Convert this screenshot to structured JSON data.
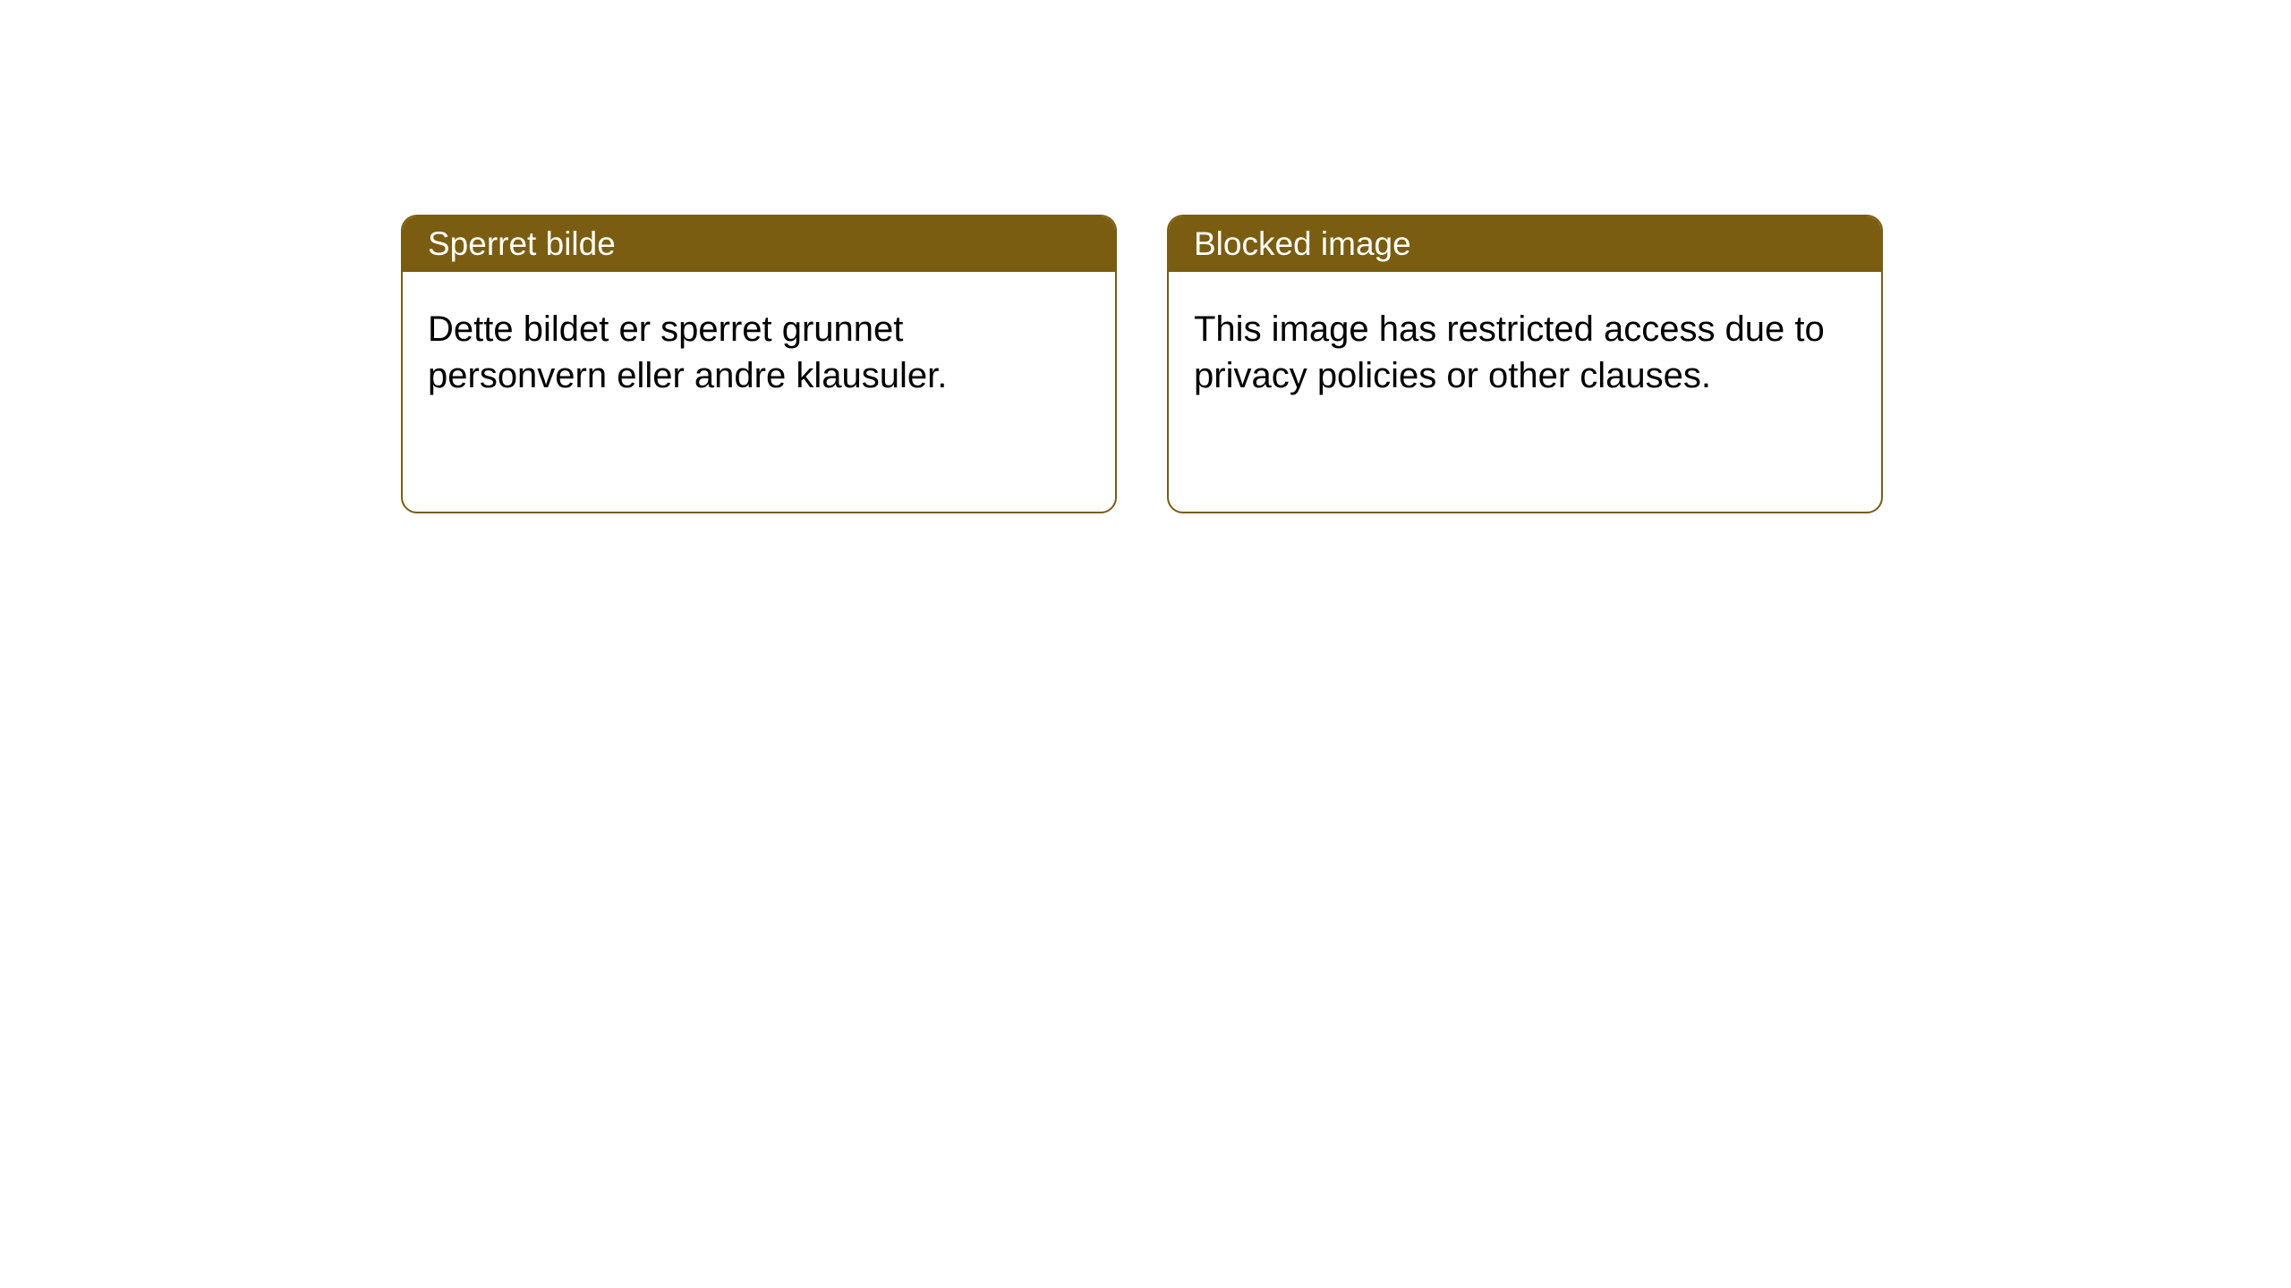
{
  "cards": [
    {
      "title": "Sperret bilde",
      "body": "Dette bildet er sperret grunnet personvern eller andre klausuler."
    },
    {
      "title": "Blocked image",
      "body": "This image has restricted access due to privacy policies or other clauses."
    }
  ],
  "style": {
    "header_bg_color": "#7a5d10",
    "header_text_color": "#ffffff",
    "body_text_color": "#000000",
    "card_border_color": "#7a5d10",
    "card_bg_color": "#ffffff",
    "page_bg_color": "#ffffff",
    "header_fontsize": 37,
    "body_fontsize": 40,
    "card_border_radius": 18
  }
}
